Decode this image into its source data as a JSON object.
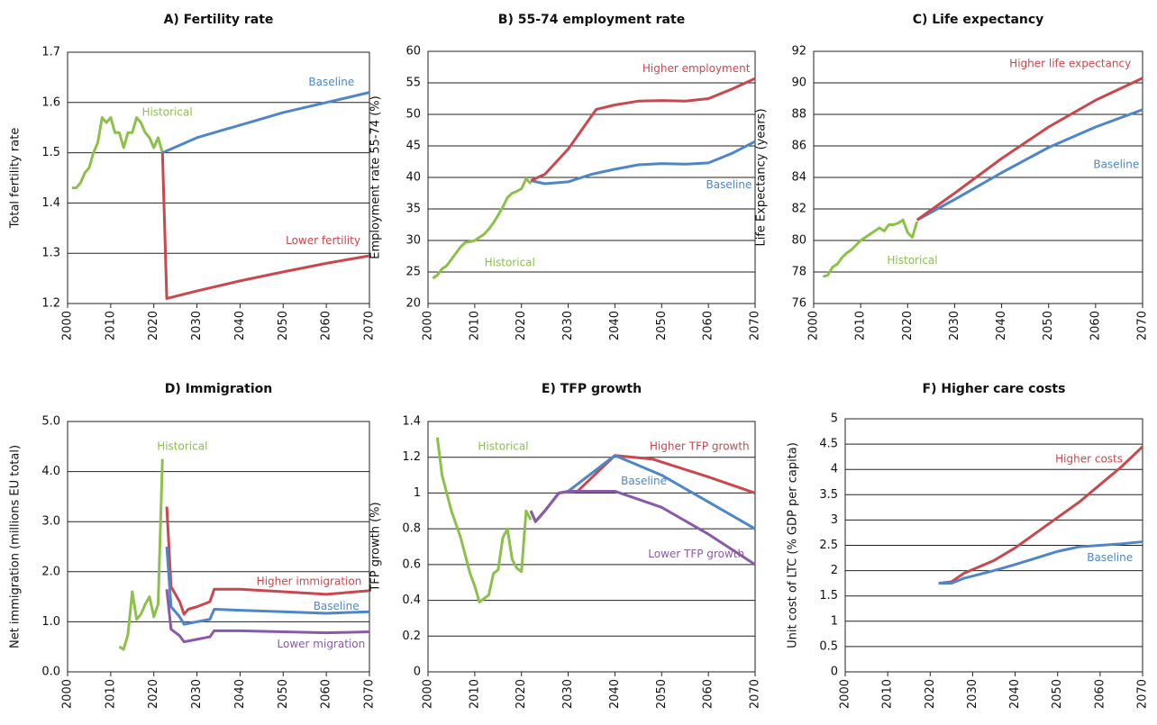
{
  "chart_data": [
    {
      "type": "line",
      "title": "A) Fertility rate",
      "y_label": "Total fertility rate",
      "grid": true,
      "xlim": [
        2000,
        2070
      ],
      "xticks": [
        2000,
        2010,
        2020,
        2030,
        2040,
        2050,
        2060,
        2070
      ],
      "ylim": [
        1.2,
        1.7
      ],
      "yticks": [
        1.2,
        1.3,
        1.4,
        1.5,
        1.6,
        1.7
      ],
      "series": [
        {
          "name": "Historical",
          "color": "#8dc04a",
          "x": [
            2001,
            2002,
            2003,
            2004,
            2005,
            2006,
            2007,
            2008,
            2009,
            2010,
            2011,
            2012,
            2013,
            2014,
            2015,
            2016,
            2017,
            2018,
            2019,
            2020,
            2021,
            2022
          ],
          "values": [
            1.43,
            1.43,
            1.44,
            1.46,
            1.47,
            1.5,
            1.52,
            1.57,
            1.56,
            1.57,
            1.54,
            1.54,
            1.51,
            1.54,
            1.54,
            1.57,
            1.56,
            1.54,
            1.53,
            1.51,
            1.53,
            1.5
          ]
        },
        {
          "name": "Baseline",
          "color": "#4f86c6",
          "x": [
            2022,
            2030,
            2040,
            2050,
            2060,
            2070
          ],
          "values": [
            1.5,
            1.53,
            1.555,
            1.58,
            1.6,
            1.62
          ]
        },
        {
          "name": "Lower fertility",
          "color": "#c9484d",
          "x": [
            2022,
            2023,
            2030,
            2040,
            2050,
            2060,
            2070
          ],
          "values": [
            1.5,
            1.21,
            1.225,
            1.245,
            1.263,
            1.28,
            1.295
          ]
        }
      ]
    },
    {
      "type": "line",
      "title": "B) 55-74 employment rate",
      "y_label": "Employment rate 55-74 (%)",
      "grid": true,
      "xlim": [
        2000,
        2070
      ],
      "xticks": [
        2000,
        2010,
        2020,
        2030,
        2040,
        2050,
        2060,
        2070
      ],
      "ylim": [
        20,
        60
      ],
      "yticks": [
        20,
        25,
        30,
        35,
        40,
        45,
        50,
        55,
        60
      ],
      "series": [
        {
          "name": "Historical",
          "color": "#8dc04a",
          "x": [
            2001,
            2002,
            2003,
            2004,
            2005,
            2006,
            2007,
            2008,
            2009,
            2010,
            2011,
            2012,
            2013,
            2014,
            2015,
            2016,
            2017,
            2018,
            2019,
            2020,
            2021,
            2022
          ],
          "values": [
            24,
            24.5,
            25.5,
            26,
            27,
            28,
            29,
            29.7,
            29.8,
            30,
            30.5,
            31,
            31.8,
            32.8,
            34,
            35.3,
            36.8,
            37.5,
            37.8,
            38.2,
            39.8,
            39
          ]
        },
        {
          "name": "Baseline",
          "color": "#4f86c6",
          "x": [
            2022,
            2025,
            2030,
            2035,
            2040,
            2045,
            2050,
            2055,
            2060,
            2065,
            2070
          ],
          "values": [
            39.5,
            39,
            39.3,
            40.5,
            41.3,
            42,
            42.2,
            42.1,
            42.3,
            43.8,
            45.7
          ]
        },
        {
          "name": "Higher employment",
          "color": "#c9484d",
          "x": [
            2022,
            2025,
            2030,
            2036,
            2040,
            2045,
            2050,
            2055,
            2060,
            2065,
            2070
          ],
          "values": [
            39.5,
            40.5,
            44.5,
            50.8,
            51.5,
            52.1,
            52.2,
            52.1,
            52.5,
            54,
            55.7
          ]
        }
      ]
    },
    {
      "type": "line",
      "title": "C) Life expectancy",
      "y_label": "Life Expectancy (years)",
      "grid": true,
      "xlim": [
        2000,
        2070
      ],
      "xticks": [
        2000,
        2010,
        2020,
        2030,
        2040,
        2050,
        2060,
        2070
      ],
      "ylim": [
        76,
        92
      ],
      "yticks": [
        76,
        78,
        80,
        82,
        84,
        86,
        88,
        90,
        92
      ],
      "series": [
        {
          "name": "Historical",
          "color": "#8dc04a",
          "x": [
            2002,
            2003,
            2004,
            2005,
            2006,
            2007,
            2008,
            2009,
            2010,
            2011,
            2012,
            2013,
            2014,
            2015,
            2016,
            2017,
            2018,
            2019,
            2020,
            2021,
            2022
          ],
          "values": [
            77.7,
            77.8,
            78.3,
            78.5,
            78.9,
            79.2,
            79.4,
            79.7,
            80,
            80.2,
            80.4,
            80.6,
            80.8,
            80.6,
            81,
            81,
            81.1,
            81.3,
            80.5,
            80.2,
            81.2
          ]
        },
        {
          "name": "Baseline",
          "color": "#4f86c6",
          "x": [
            2022,
            2030,
            2040,
            2050,
            2060,
            2070
          ],
          "values": [
            81.3,
            82.6,
            84.3,
            85.9,
            87.2,
            88.3
          ]
        },
        {
          "name": "Higher life expectancy",
          "color": "#c9484d",
          "x": [
            2022,
            2030,
            2040,
            2050,
            2060,
            2070
          ],
          "values": [
            81.3,
            83,
            85.2,
            87.2,
            88.9,
            90.3
          ]
        }
      ]
    },
    {
      "type": "line",
      "title": "D) Immigration",
      "y_label": "Net immigration (millions  EU total)",
      "grid": true,
      "xlim": [
        2000,
        2070
      ],
      "xticks": [
        2000,
        2010,
        2020,
        2030,
        2040,
        2050,
        2060,
        2070
      ],
      "ylim": [
        0,
        5
      ],
      "yticks": [
        {
          "value": 0,
          "label": "0.0"
        },
        {
          "value": 1,
          "label": "1.0"
        },
        {
          "value": 2,
          "label": "2.0"
        },
        {
          "value": 3,
          "label": "3.0"
        },
        {
          "value": 4,
          "label": "4.0"
        },
        {
          "value": 5,
          "label": "5.0"
        }
      ],
      "series": [
        {
          "name": "Historical",
          "color": "#8dc04a",
          "x": [
            2012,
            2013,
            2014,
            2015,
            2016,
            2017,
            2018,
            2019,
            2020,
            2021,
            2022
          ],
          "values": [
            0.5,
            0.45,
            0.75,
            1.6,
            1.05,
            1.15,
            1.35,
            1.5,
            1.1,
            1.35,
            4.25
          ]
        },
        {
          "name": "Higher immigration",
          "color": "#c9484d",
          "x": [
            2023,
            2024,
            2026,
            2027,
            2028,
            2030,
            2033,
            2034,
            2040,
            2050,
            2060,
            2070
          ],
          "values": [
            3.3,
            1.7,
            1.4,
            1.15,
            1.25,
            1.3,
            1.4,
            1.65,
            1.65,
            1.6,
            1.55,
            1.62
          ]
        },
        {
          "name": "Baseline",
          "color": "#4f86c6",
          "x": [
            2023,
            2024,
            2026,
            2027,
            2030,
            2033,
            2034,
            2040,
            2050,
            2060,
            2070
          ],
          "values": [
            2.5,
            1.3,
            1.1,
            0.95,
            1,
            1.05,
            1.25,
            1.23,
            1.2,
            1.17,
            1.2
          ]
        },
        {
          "name": "Lower migration",
          "color": "#8a5aa8",
          "x": [
            2023,
            2024,
            2026,
            2027,
            2030,
            2033,
            2034,
            2040,
            2050,
            2060,
            2070
          ],
          "values": [
            1.65,
            0.85,
            0.72,
            0.6,
            0.65,
            0.7,
            0.82,
            0.82,
            0.8,
            0.78,
            0.8
          ]
        }
      ]
    },
    {
      "type": "line",
      "title": "E) TFP growth",
      "y_label": "TFP growth (%)",
      "grid": true,
      "xlim": [
        2000,
        2070
      ],
      "xticks": [
        2000,
        2010,
        2020,
        2030,
        2040,
        2050,
        2060,
        2070
      ],
      "ylim": [
        0,
        1.4
      ],
      "yticks": [
        0,
        0.2,
        0.4,
        0.6,
        0.8,
        1,
        1.2,
        1.4
      ],
      "series": [
        {
          "name": "Historical",
          "color": "#8dc04a",
          "x": [
            2002,
            2003,
            2005,
            2007,
            2009,
            2010,
            2011,
            2012,
            2013,
            2014,
            2015,
            2016,
            2017,
            2018,
            2019,
            2020,
            2021,
            2022
          ],
          "values": [
            1.31,
            1.1,
            0.9,
            0.75,
            0.55,
            0.48,
            0.39,
            0.41,
            0.43,
            0.55,
            0.57,
            0.75,
            0.8,
            0.63,
            0.58,
            0.56,
            0.9,
            0.85
          ]
        },
        {
          "name": "Higher TFP growth",
          "color": "#c9484d",
          "x": [
            2022,
            2023,
            2025,
            2028,
            2032,
            2040,
            2048,
            2060,
            2070
          ],
          "values": [
            0.9,
            0.84,
            0.9,
            1,
            1.01,
            1.21,
            1.19,
            1.09,
            1
          ]
        },
        {
          "name": "Baseline",
          "color": "#4f86c6",
          "x": [
            2022,
            2023,
            2025,
            2028,
            2030,
            2040,
            2050,
            2060,
            2070
          ],
          "values": [
            0.9,
            0.84,
            0.9,
            1,
            1.01,
            1.21,
            1.1,
            0.95,
            0.8
          ]
        },
        {
          "name": "Lower TFP growth",
          "color": "#8a5aa8",
          "x": [
            2022,
            2023,
            2025,
            2028,
            2030,
            2040,
            2050,
            2060,
            2070
          ],
          "values": [
            0.9,
            0.84,
            0.9,
            1,
            1.01,
            1.01,
            0.92,
            0.77,
            0.6
          ]
        }
      ]
    },
    {
      "type": "line",
      "title": "F) Higher care costs",
      "y_label": "Unit cost of LTC (% GDP per capita)",
      "grid": true,
      "xlim": [
        2000,
        2070
      ],
      "xticks": [
        2000,
        2010,
        2020,
        2030,
        2040,
        2050,
        2060,
        2070
      ],
      "ylim": [
        0,
        5
      ],
      "yticks": [
        0,
        0.5,
        1,
        1.5,
        2,
        2.5,
        3,
        3.5,
        4,
        4.5,
        5
      ],
      "series": [
        {
          "name": "Higher costs",
          "color": "#c9484d",
          "x": [
            2022,
            2025,
            2028,
            2035,
            2040,
            2045,
            2050,
            2055,
            2060,
            2065,
            2070
          ],
          "values": [
            1.75,
            1.78,
            1.95,
            2.2,
            2.45,
            2.75,
            3.05,
            3.35,
            3.7,
            4.05,
            4.45
          ]
        },
        {
          "name": "Baseline",
          "color": "#4f86c6",
          "x": [
            2022,
            2025,
            2028,
            2035,
            2040,
            2045,
            2050,
            2055,
            2060,
            2065,
            2070
          ],
          "values": [
            1.75,
            1.75,
            1.85,
            2,
            2.12,
            2.25,
            2.38,
            2.47,
            2.5,
            2.53,
            2.57
          ]
        }
      ]
    }
  ]
}
